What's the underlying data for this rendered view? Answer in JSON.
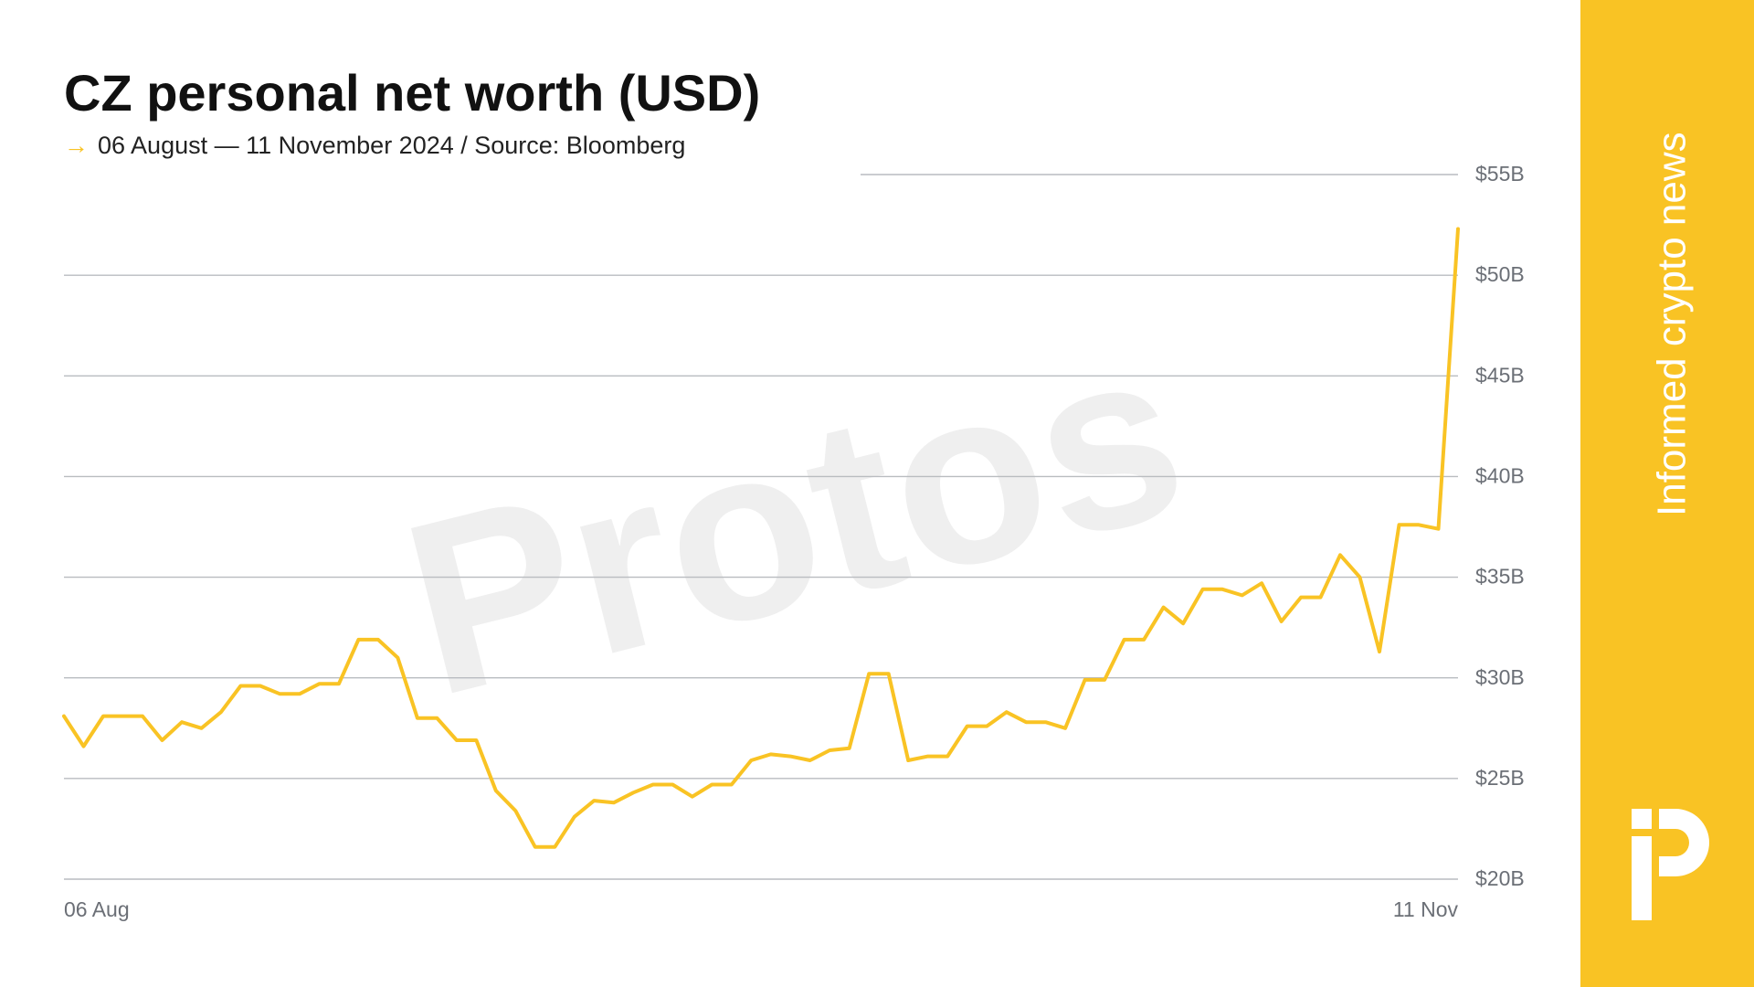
{
  "chart_data": {
    "type": "line",
    "title": "CZ personal net worth (USD)",
    "subtitle_marker": "→",
    "subtitle": "06 August — 11 November 2024 / Source: Bloomberg",
    "watermark": "Protos",
    "sidebar_text": "Informed crypto news",
    "categories": [
      "06 Aug",
      null,
      null,
      null,
      null,
      null,
      null,
      null,
      null,
      null,
      null,
      null,
      null,
      null,
      null,
      null,
      null,
      null,
      null,
      null,
      null,
      null,
      null,
      null,
      null,
      null,
      null,
      null,
      null,
      null,
      null,
      null,
      null,
      null,
      null,
      null,
      null,
      null,
      null,
      null,
      null,
      null,
      null,
      null,
      null,
      null,
      null,
      null,
      null,
      null,
      null,
      null,
      null,
      null,
      null,
      null,
      null,
      null,
      null,
      null,
      null,
      null,
      null,
      null,
      null,
      null,
      null,
      null,
      null,
      null,
      null,
      "11 Nov"
    ],
    "values": [
      28.1,
      26.6,
      28.1,
      28.1,
      28.1,
      26.9,
      27.8,
      27.5,
      28.3,
      29.6,
      29.6,
      29.2,
      29.2,
      29.7,
      29.7,
      31.9,
      31.9,
      31.0,
      28.0,
      28.0,
      26.9,
      26.9,
      24.4,
      23.4,
      21.6,
      21.6,
      23.1,
      23.9,
      23.8,
      24.3,
      24.7,
      24.7,
      24.1,
      24.7,
      24.7,
      25.9,
      26.2,
      26.1,
      25.9,
      26.4,
      26.5,
      30.2,
      30.2,
      25.9,
      26.1,
      26.1,
      27.6,
      27.6,
      28.3,
      27.8,
      27.8,
      27.5,
      29.9,
      29.9,
      31.9,
      31.9,
      33.5,
      32.7,
      34.4,
      34.4,
      34.1,
      34.7,
      32.8,
      34.0,
      34.0,
      36.1,
      35.0,
      31.3,
      37.6,
      37.6,
      37.4,
      52.3
    ],
    "color": "#f9c324",
    "ylim": [
      20,
      55
    ],
    "yticks": [
      {
        "value": 20,
        "label": "$20B"
      },
      {
        "value": 25,
        "label": "$25B"
      },
      {
        "value": 30,
        "label": "$30B"
      },
      {
        "value": 35,
        "label": "$35B"
      },
      {
        "value": 40,
        "label": "$40B"
      },
      {
        "value": 45,
        "label": "$45B"
      },
      {
        "value": 50,
        "label": "$50B"
      },
      {
        "value": 55,
        "label": "$55B"
      }
    ],
    "grid": true
  }
}
